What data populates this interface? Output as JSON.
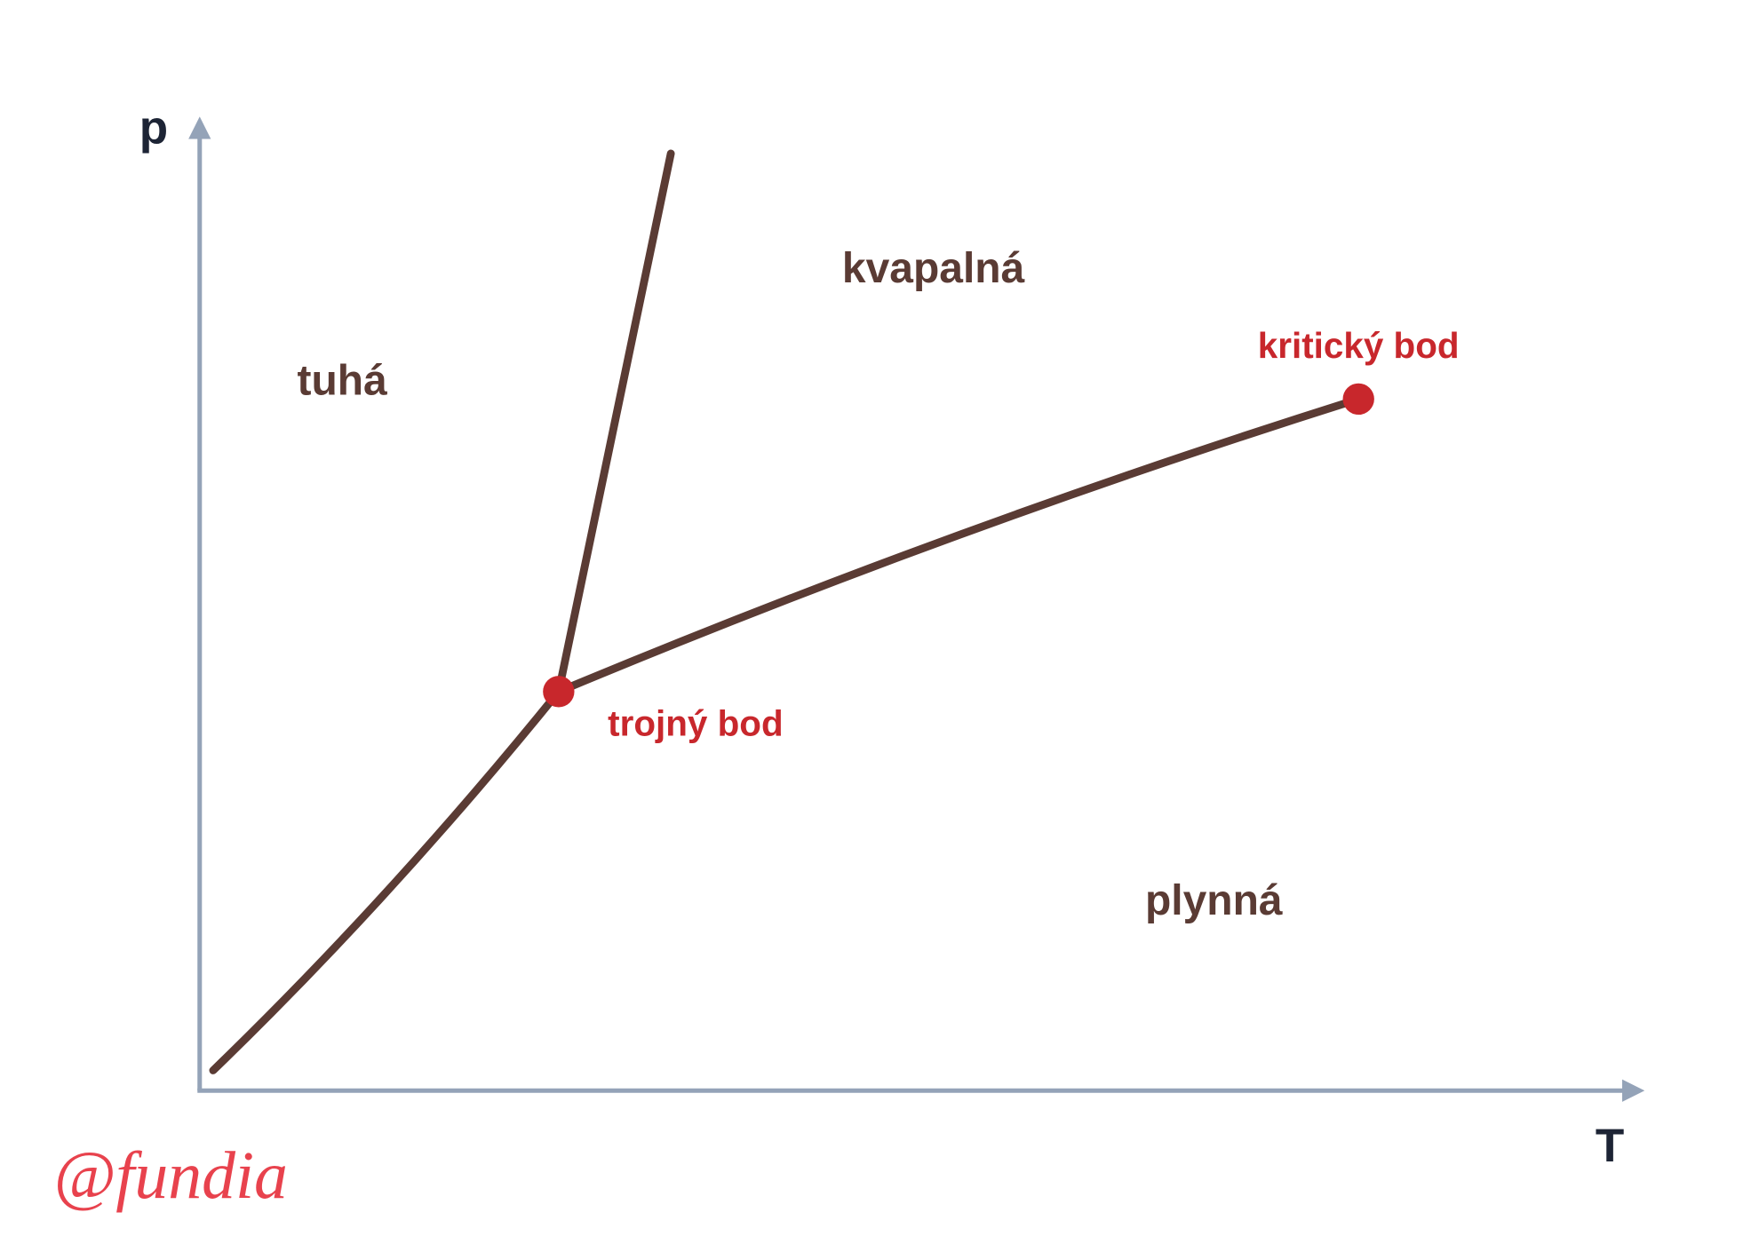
{
  "axes": {
    "y_label": "p",
    "x_label": "T"
  },
  "regions": [
    {
      "label": "tuhá"
    },
    {
      "label": "kvapalná"
    },
    {
      "label": "plynná"
    }
  ],
  "points": [
    {
      "label": "trojný bod"
    },
    {
      "label": "kritický bod"
    }
  ],
  "watermark": "@fundia"
}
